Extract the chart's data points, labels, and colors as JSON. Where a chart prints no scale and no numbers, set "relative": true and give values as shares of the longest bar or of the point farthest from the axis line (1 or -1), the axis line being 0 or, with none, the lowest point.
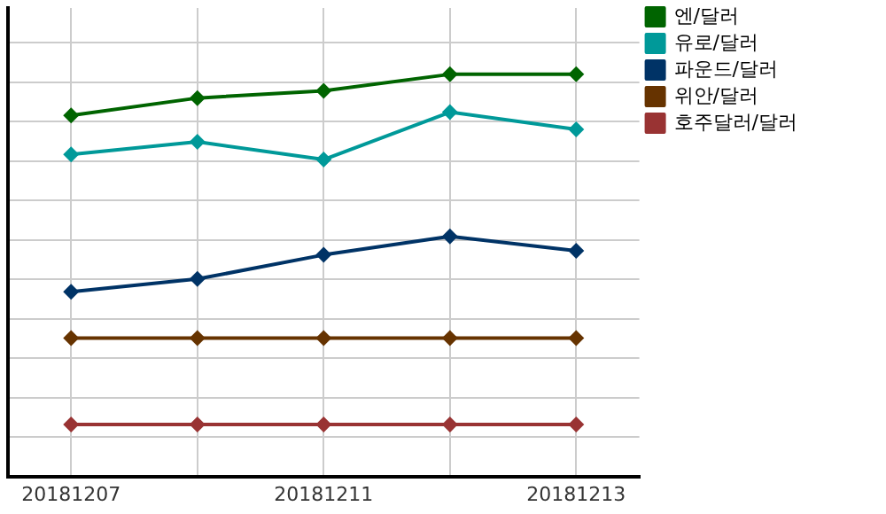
{
  "chart_data": {
    "type": "line",
    "relative": true,
    "categories": [
      "20181207",
      null,
      "20181211",
      null,
      "20181213"
    ],
    "series": [
      {
        "name": "엔/달러",
        "color": "#006400",
        "values": [
          0.898,
          0.941,
          0.959,
          1,
          1
        ]
      },
      {
        "name": "유로/달러",
        "color": "#009999",
        "values": [
          0.801,
          0.832,
          0.788,
          0.906,
          0.863
        ]
      },
      {
        "name": "파운드/달러",
        "color": "#003366",
        "values": [
          0.459,
          0.491,
          0.551,
          0.597,
          0.561
        ]
      },
      {
        "name": "위안/달러",
        "color": "#663300",
        "values": [
          0.344,
          0.344,
          0.344,
          0.344,
          0.344
        ]
      },
      {
        "name": "호주달러/달러",
        "color": "#993333",
        "values": [
          0.129,
          0.129,
          0.129,
          0.129,
          0.129
        ]
      }
    ],
    "grid": true,
    "legend": "right",
    "marker": "diamond",
    "line_style": "solid"
  }
}
